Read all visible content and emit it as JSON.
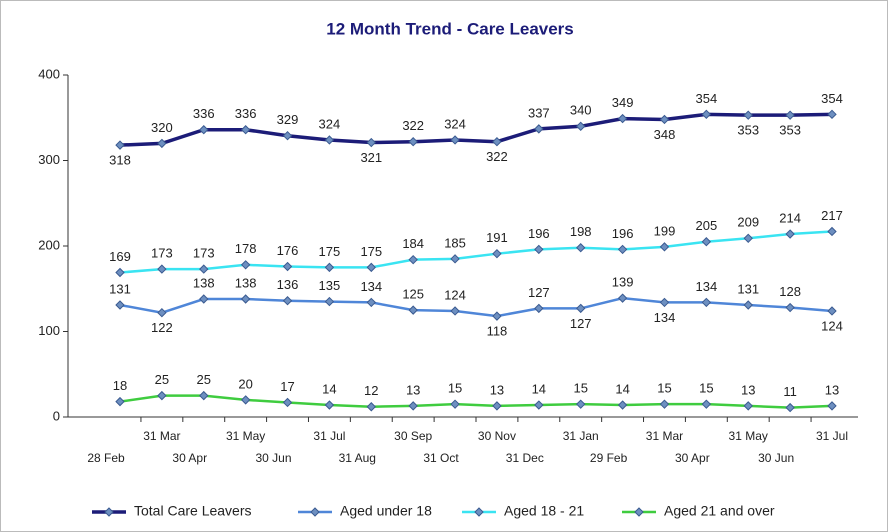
{
  "chart_data": {
    "type": "line",
    "title": "12 Month Trend - Care Leavers",
    "categories": [
      "28 Feb",
      "31 Mar",
      "30 Apr",
      "31 May",
      "30 Jun",
      "31 Jul",
      "31 Aug",
      "30 Sep",
      "31 Oct",
      "30 Nov",
      "31 Dec",
      "31 Jan",
      "29 Feb",
      "31 Mar",
      "30 Apr",
      "31 May",
      "30 Jun",
      "31 Jul"
    ],
    "series": [
      {
        "name": "Total Care Leavers",
        "color": "#1c1c78",
        "values": [
          318,
          320,
          336,
          336,
          329,
          324,
          321,
          322,
          324,
          322,
          337,
          340,
          349,
          348,
          354,
          353,
          353,
          354
        ]
      },
      {
        "name": "Aged under 18",
        "color": "#4f86d8",
        "values": [
          131,
          122,
          138,
          138,
          136,
          135,
          134,
          125,
          124,
          118,
          127,
          127,
          139,
          134,
          134,
          131,
          128,
          124
        ]
      },
      {
        "name": "Aged 18 - 21",
        "color": "#3ae4f2",
        "values": [
          169,
          173,
          173,
          178,
          176,
          175,
          175,
          184,
          185,
          191,
          196,
          198,
          196,
          199,
          205,
          209,
          214,
          217
        ]
      },
      {
        "name": "Aged 21 and over",
        "color": "#3fcc3f",
        "values": [
          18,
          25,
          25,
          20,
          17,
          14,
          12,
          13,
          15,
          13,
          14,
          15,
          14,
          15,
          15,
          13,
          11,
          13
        ]
      }
    ],
    "ylim": [
      0,
      400
    ],
    "yticks": [
      0,
      100,
      200,
      300,
      400
    ],
    "legend": "bottom"
  }
}
